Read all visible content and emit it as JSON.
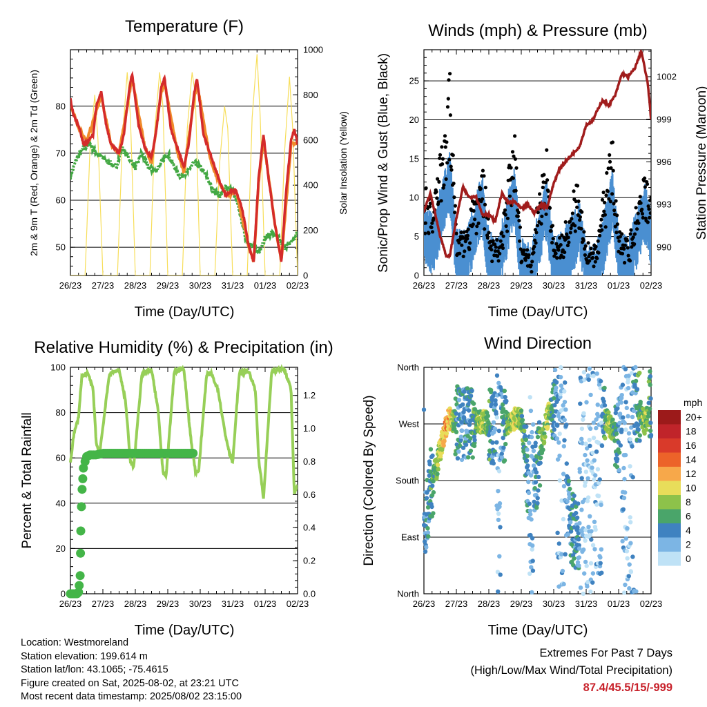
{
  "colors": {
    "temp_2m": "#d42b2b",
    "temp_9m": "#f08a2a",
    "dewpoint": "#43a843",
    "insolation": "#f7de5a",
    "wind_sonic": "#4a8fd1",
    "gust": "#000000",
    "pressure": "#a01c1c",
    "rh": "#97cf58",
    "precip": "#44b548"
  },
  "panels": {
    "temperature": {
      "title": "Temperature (F)",
      "ylabel_left": "2m & 9m T (Red, Orange) & 2m Td (Green)",
      "ylabel_right": "Solar Insolation (Yellow)",
      "xlabel": "Time (Day/UTC)"
    },
    "winds": {
      "title": "Winds (mph) & Pressure (mb)",
      "ylabel_left": "Sonic/Prop Wind & Gust (Blue, Black)",
      "ylabel_right": "Station Pressure (Maroon)",
      "xlabel": "Time (Day/UTC)"
    },
    "humidity": {
      "title": "Relative Humidity (%) & Precipitation (in)",
      "ylabel_left": "Percent & Total Rainfall",
      "xlabel": "Time (Day/UTC)"
    },
    "direction": {
      "title": "Wind Direction",
      "ylabel_left": "Direction (Colored By Speed)",
      "xlabel": "Time (Day/UTC)",
      "legend_title": "mph"
    }
  },
  "info": {
    "location": "Location: Westmoreland",
    "elevation": "Station elevation: 199.614 m",
    "latlon": "Station lat/lon: 43.1065; -75.4615",
    "created": "Figure created on Sat, 2025-08-02, at 23:21 UTC",
    "recent": "Most recent data timestamp: 2025/08/02 23:15:00"
  },
  "extremes": {
    "heading": "Extremes For Past 7 Days",
    "subheading": "(High/Low/Max Wind/Total Precipitation)",
    "values": "87.4/45.5/15/-999"
  },
  "chart_data": [
    {
      "type": "line",
      "id": "temperature",
      "title": "Temperature (F)",
      "xlabel": "Time (Day/UTC)",
      "ylabel": "2m & 9m T (Red, Orange) & 2m Td (Green)",
      "y2label": "Solar Insolation (Yellow)",
      "x_ticks": [
        "26/23",
        "27/23",
        "28/23",
        "29/23",
        "30/23",
        "31/23",
        "01/23",
        "02/23"
      ],
      "xlim": [
        0,
        7
      ],
      "ylim": [
        44,
        92
      ],
      "y_ticks": [
        50,
        60,
        70,
        80
      ],
      "y2lim": [
        0,
        1000
      ],
      "y2_ticks": [
        0,
        200,
        400,
        600,
        800,
        1000
      ],
      "grid": true,
      "series": [
        {
          "name": "2m T",
          "axis": "left",
          "x": [
            0,
            0.1,
            0.25,
            0.4,
            0.5,
            0.7,
            0.8,
            0.95,
            1.1,
            1.25,
            1.5,
            1.65,
            1.8,
            1.9,
            2.1,
            2.3,
            2.5,
            2.65,
            2.8,
            2.9,
            3.1,
            3.3,
            3.5,
            3.65,
            3.8,
            3.9,
            4.1,
            4.3,
            4.5,
            4.65,
            4.8,
            4.95,
            5.1,
            5.3,
            5.5,
            5.65,
            5.8,
            5.95,
            6.1,
            6.3,
            6.5,
            6.65,
            6.8,
            6.9,
            7
          ],
          "y": [
            81.5,
            78,
            76,
            72,
            72,
            74,
            80,
            83,
            76,
            72,
            70,
            74,
            83,
            87,
            76,
            71,
            69,
            75,
            84,
            86,
            75,
            71,
            67,
            72,
            82,
            86,
            74,
            70,
            66,
            63,
            61,
            62,
            62,
            58,
            50,
            47,
            65,
            74,
            65,
            55,
            47,
            62,
            73,
            75,
            72
          ]
        },
        {
          "name": "9m T",
          "axis": "left",
          "x": [
            0,
            0.25,
            0.5,
            0.8,
            0.95,
            1.25,
            1.5,
            1.8,
            1.9,
            2.3,
            2.5,
            2.8,
            2.9,
            3.3,
            3.5,
            3.8,
            3.9,
            4.3,
            4.5,
            4.8,
            5.1,
            5.5,
            5.65,
            5.8,
            5.95,
            6.3,
            6.5,
            6.8,
            7
          ],
          "y": [
            80.5,
            75.5,
            72.5,
            79,
            82,
            72,
            70,
            82,
            86,
            71,
            68,
            83,
            85,
            70,
            66,
            81,
            85,
            69,
            65,
            61,
            62,
            50,
            47,
            64,
            73,
            55,
            47,
            72,
            72
          ]
        },
        {
          "name": "2m Td",
          "axis": "left",
          "x": [
            0,
            0.2,
            0.4,
            0.6,
            0.8,
            1,
            1.2,
            1.4,
            1.6,
            1.8,
            2,
            2.2,
            2.4,
            2.6,
            2.8,
            3,
            3.2,
            3.4,
            3.6,
            3.8,
            4,
            4.2,
            4.4,
            4.6,
            4.8,
            5,
            5.2,
            5.4,
            5.6,
            5.8,
            6,
            6.2,
            6.4,
            6.6,
            6.8,
            7
          ],
          "y": [
            65,
            69,
            71,
            72,
            70,
            69,
            68,
            67,
            71,
            69,
            67,
            70,
            67,
            66,
            68,
            70,
            67,
            65,
            66,
            68,
            67,
            65,
            62,
            61,
            63,
            62,
            58,
            52,
            50,
            49,
            52,
            53,
            52,
            50,
            51,
            53
          ]
        },
        {
          "name": "Solar Insolation",
          "axis": "right",
          "x": [
            0,
            0.45,
            0.6,
            0.75,
            0.85,
            1.0,
            1.45,
            1.6,
            1.75,
            1.85,
            2.0,
            2.45,
            2.6,
            2.75,
            2.85,
            3.0,
            3.45,
            3.6,
            3.75,
            3.85,
            4.0,
            4.45,
            4.6,
            4.75,
            4.85,
            5.0,
            5.45,
            5.6,
            5.75,
            5.85,
            6.0,
            6.45,
            6.6,
            6.75,
            6.85,
            7.0
          ],
          "y": [
            0,
            0,
            550,
            800,
            600,
            0,
            0,
            600,
            900,
            700,
            0,
            0,
            650,
            900,
            750,
            0,
            0,
            650,
            900,
            800,
            0,
            0,
            500,
            750,
            650,
            0,
            0,
            700,
            980,
            700,
            0,
            0,
            550,
            880,
            650,
            0
          ]
        }
      ]
    },
    {
      "type": "line",
      "id": "winds",
      "title": "Winds (mph) & Pressure (mb)",
      "xlabel": "Time (Day/UTC)",
      "ylabel": "Sonic/Prop Wind & Gust (Blue, Black)",
      "y2label": "Station Pressure (Maroon)",
      "x_ticks": [
        "26/23",
        "27/23",
        "28/23",
        "29/23",
        "30/23",
        "31/23",
        "01/23",
        "02/23"
      ],
      "xlim": [
        0,
        7
      ],
      "ylim": [
        0,
        29
      ],
      "y_ticks": [
        0,
        5,
        10,
        15,
        20,
        25
      ],
      "y2lim": [
        988.0,
        1003.9
      ],
      "y2_ticks": [
        990,
        993,
        996,
        999,
        1002
      ],
      "grid": true,
      "series": [
        {
          "name": "Sonic/Prop Wind",
          "axis": "left",
          "x": [
            0,
            0.3,
            0.7,
            0.8,
            1.0,
            1.3,
            1.7,
            1.8,
            2.0,
            2.3,
            2.7,
            2.8,
            3.0,
            3.3,
            3.7,
            3.8,
            4.0,
            4.3,
            4.7,
            4.8,
            5.0,
            5.3,
            5.7,
            5.8,
            6.0,
            6.3,
            6.7,
            6.8,
            7
          ],
          "y": [
            6,
            5,
            12,
            13,
            3,
            3,
            9,
            10,
            3,
            2,
            10,
            11,
            2,
            1,
            9,
            9,
            2,
            3,
            6,
            7,
            2,
            1,
            8,
            11,
            3,
            2,
            8,
            9,
            6
          ]
        },
        {
          "name": "Gust",
          "axis": "left",
          "x": [
            0,
            0.3,
            0.7,
            0.8,
            1.0,
            1.3,
            1.7,
            1.8,
            2.0,
            2.3,
            2.7,
            2.8,
            3.0,
            3.3,
            3.7,
            3.8,
            4.0,
            4.3,
            4.7,
            4.8,
            5.0,
            5.3,
            5.7,
            5.8,
            6.0,
            6.3,
            6.7,
            6.8,
            7
          ],
          "y": [
            11,
            10,
            22,
            27,
            6,
            5,
            13,
            15,
            6,
            4,
            16,
            17,
            4,
            2,
            15,
            16,
            4,
            5,
            12,
            11,
            4,
            3,
            16,
            19,
            6,
            4,
            12,
            15,
            10
          ]
        },
        {
          "name": "Station Pressure",
          "axis": "right",
          "x": [
            0,
            0.2,
            0.5,
            0.7,
            0.8,
            1.0,
            1.2,
            1.4,
            1.6,
            1.8,
            2.0,
            2.2,
            2.4,
            2.6,
            2.8,
            3.0,
            3.2,
            3.4,
            3.6,
            3.8,
            4.0,
            4.2,
            4.4,
            4.6,
            4.8,
            5.0,
            5.2,
            5.4,
            5.5,
            5.7,
            5.9,
            6.1,
            6.3,
            6.5,
            6.7,
            6.9,
            7
          ],
          "y": [
            992.5,
            993.8,
            990.8,
            989.3,
            989.4,
            992,
            994.2,
            993.5,
            993.6,
            992.3,
            992.3,
            991.8,
            993.8,
            993.1,
            993.2,
            992.7,
            993.0,
            992.4,
            993.0,
            992.8,
            994.5,
            995.6,
            996.1,
            996.6,
            997.1,
            998.6,
            998.9,
            999.9,
            1000.3,
            1000.0,
            1000.7,
            1002.2,
            1002.0,
            1002.6,
            1003.8,
            1001.5,
            999.0
          ]
        }
      ]
    },
    {
      "type": "line",
      "id": "humidity",
      "title": "Relative Humidity (%) & Precipitation (in)",
      "xlabel": "Time (Day/UTC)",
      "ylabel": "Percent & Total Rainfall",
      "x_ticks": [
        "26/23",
        "27/23",
        "28/23",
        "29/23",
        "30/23",
        "31/23",
        "01/23",
        "02/23"
      ],
      "xlim": [
        0,
        7
      ],
      "ylim": [
        0,
        100
      ],
      "y_ticks": [
        0,
        20,
        40,
        60,
        80,
        100
      ],
      "y2lim": [
        0,
        1.37
      ],
      "y2_ticks": [
        0.0,
        0.2,
        0.4,
        0.6,
        0.8,
        1.0,
        1.2
      ],
      "grid": true,
      "series": [
        {
          "name": "RH",
          "axis": "left",
          "x": [
            0,
            0.1,
            0.25,
            0.35,
            0.55,
            0.7,
            0.8,
            0.9,
            1.2,
            1.35,
            1.5,
            1.7,
            1.85,
            1.95,
            2.2,
            2.35,
            2.5,
            2.7,
            2.85,
            2.95,
            3.2,
            3.35,
            3.5,
            3.7,
            3.85,
            3.95,
            4.2,
            4.35,
            4.55,
            4.75,
            4.9,
            5.0,
            5.2,
            5.35,
            5.5,
            5.7,
            5.8,
            5.95,
            6.2,
            6.4,
            6.6,
            6.8,
            6.9,
            7
          ],
          "y": [
            58,
            70,
            78,
            96,
            97,
            90,
            66,
            62,
            97,
            98,
            99,
            85,
            58,
            56,
            97,
            98,
            99,
            81,
            54,
            52,
            98,
            99,
            99,
            70,
            54,
            54,
            97,
            97,
            90,
            72,
            62,
            58,
            97,
            98,
            98,
            90,
            60,
            42,
            98,
            99,
            99,
            90,
            44,
            48
          ]
        },
        {
          "name": "Total Rainfall",
          "axis": "right",
          "x": [
            0,
            0.2,
            0.25,
            0.3,
            0.32,
            0.35,
            0.4,
            0.45,
            0.5,
            0.6,
            0.8,
            1.0,
            1.5,
            2.0,
            2.5,
            3.0,
            3.5,
            3.8
          ],
          "y": [
            0.0,
            0.0,
            0.01,
            0.11,
            0.38,
            0.6,
            0.76,
            0.8,
            0.83,
            0.84,
            0.84,
            0.85,
            0.85,
            0.85,
            0.85,
            0.85,
            0.85,
            0.85
          ]
        }
      ]
    },
    {
      "type": "scatter",
      "id": "direction",
      "title": "Wind Direction",
      "xlabel": "Time (Day/UTC)",
      "ylabel": "Direction (Colored By Speed)",
      "x_ticks": [
        "26/23",
        "27/23",
        "28/23",
        "29/23",
        "30/23",
        "31/23",
        "01/23",
        "02/23"
      ],
      "xlim": [
        0,
        7
      ],
      "y_ticks": [
        "North",
        "East",
        "South",
        "West",
        "North"
      ],
      "ylim": [
        0,
        360
      ],
      "grid": true,
      "colorbar": {
        "title": "mph",
        "labels": [
          "20+",
          "18",
          "16",
          "14",
          "12",
          "10",
          "8",
          "6",
          "4",
          "2",
          "0"
        ],
        "colors": [
          "#9c1a1a",
          "#c0242a",
          "#d93a2a",
          "#ec6329",
          "#f7a84a",
          "#e8dd5a",
          "#8dc24a",
          "#4aa56a",
          "#3f82c0",
          "#7cb5e4",
          "#bfe2f6"
        ]
      },
      "series": [
        {
          "name": "Direction",
          "x": [
            0,
            0.1,
            0.2,
            0.3,
            0.4,
            0.5,
            0.6,
            0.7,
            0.8,
            0.9,
            1.0,
            1.2,
            1.5,
            1.8,
            2.0,
            2.3,
            2.8,
            3.0,
            3.3,
            3.8,
            4.0,
            4.2,
            4.5,
            4.6,
            4.8,
            5.0,
            5.2,
            5.4,
            5.7,
            6.0,
            6.3,
            6.8,
            7.0
          ],
          "y": [
            80,
            140,
            170,
            190,
            200,
            230,
            250,
            268,
            280,
            275,
            272,
            270,
            268,
            275,
            270,
            260,
            280,
            275,
            150,
            280,
            300,
            320,
            110,
            100,
            90,
            150,
            80,
            300,
            270,
            250,
            340,
            270,
            300
          ],
          "speed": [
            3,
            4,
            5,
            6,
            7,
            9,
            11,
            12,
            11,
            8,
            5,
            3,
            5,
            9,
            6,
            2,
            10,
            7,
            2,
            9,
            5,
            1,
            4,
            5,
            3,
            1,
            2,
            1,
            9,
            4,
            1,
            8,
            5
          ]
        }
      ]
    }
  ]
}
